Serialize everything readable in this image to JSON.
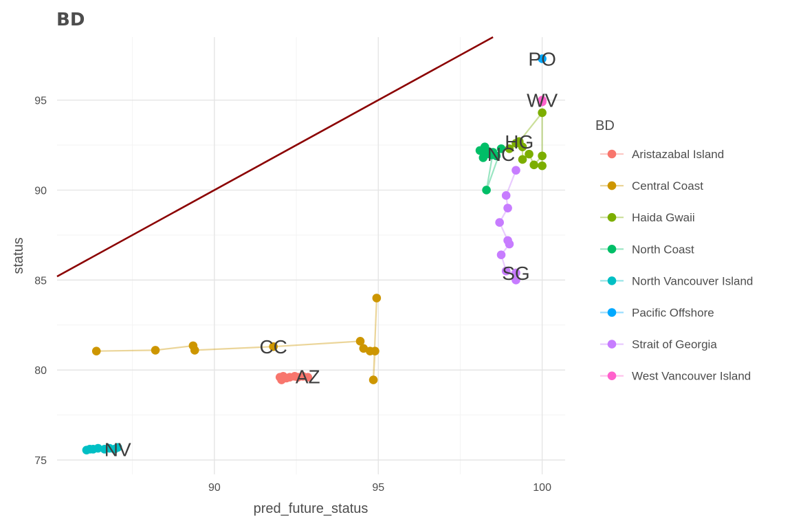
{
  "chart_data": {
    "type": "scatter",
    "title": "BD",
    "xlabel": "pred_future_status",
    "ylabel": "status",
    "xlim": [
      85.2,
      100.7
    ],
    "ylim": [
      74.2,
      98.5
    ],
    "x_ticks": [
      90,
      95,
      100
    ],
    "y_ticks": [
      75,
      80,
      85,
      90,
      95
    ],
    "grid": true,
    "legend_title": "BD",
    "legend_position": "right",
    "reference_line": {
      "type": "identity",
      "color": "#8b0000"
    },
    "series": [
      {
        "name": "Aristazabal Island",
        "color": "#F8766D",
        "label": "AZ",
        "points": [
          [
            92.0,
            79.6
          ],
          [
            92.05,
            79.45
          ],
          [
            92.2,
            79.55
          ],
          [
            92.3,
            79.6
          ],
          [
            92.45,
            79.65
          ],
          [
            92.55,
            79.6
          ],
          [
            92.7,
            79.65
          ],
          [
            92.85,
            79.6
          ],
          [
            92.1,
            79.65
          ]
        ]
      },
      {
        "name": "Central Coast",
        "color": "#CD9600",
        "label": "CC",
        "points": [
          [
            86.4,
            81.05
          ],
          [
            88.2,
            81.1
          ],
          [
            89.35,
            81.35
          ],
          [
            89.4,
            81.1
          ],
          [
            91.8,
            81.3
          ],
          [
            94.45,
            81.6
          ],
          [
            94.55,
            81.2
          ],
          [
            94.75,
            81.05
          ],
          [
            94.9,
            81.05
          ],
          [
            94.85,
            79.45
          ],
          [
            94.95,
            84.0
          ]
        ]
      },
      {
        "name": "Haida Gwaii",
        "color": "#7CAE00",
        "label": "HG",
        "points": [
          [
            99.0,
            92.3
          ],
          [
            99.2,
            92.6
          ],
          [
            99.4,
            92.4
          ],
          [
            99.4,
            91.7
          ],
          [
            99.6,
            92.0
          ],
          [
            99.75,
            91.4
          ],
          [
            100.0,
            91.9
          ],
          [
            100.0,
            91.35
          ],
          [
            100.0,
            94.3
          ],
          [
            99.3,
            92.7
          ]
        ]
      },
      {
        "name": "North Coast",
        "color": "#00BE67",
        "label": "NC",
        "points": [
          [
            98.1,
            92.2
          ],
          [
            98.2,
            91.8
          ],
          [
            98.25,
            92.4
          ],
          [
            98.3,
            92.0
          ],
          [
            98.35,
            92.15
          ],
          [
            98.45,
            91.95
          ],
          [
            98.6,
            91.9
          ],
          [
            98.75,
            92.3
          ],
          [
            98.3,
            90.0
          ],
          [
            98.5,
            92.1
          ]
        ]
      },
      {
        "name": "North Vancouver Island",
        "color": "#00BFC4",
        "label": "NV",
        "points": [
          [
            86.1,
            75.55
          ],
          [
            86.2,
            75.6
          ],
          [
            86.3,
            75.6
          ],
          [
            86.45,
            75.65
          ],
          [
            86.65,
            75.6
          ],
          [
            86.8,
            75.65
          ],
          [
            86.95,
            75.6
          ],
          [
            87.05,
            75.7
          ]
        ]
      },
      {
        "name": "Pacific Offshore",
        "color": "#00A9FF",
        "label": "PO",
        "points": [
          [
            100.0,
            97.3
          ]
        ]
      },
      {
        "name": "Strait of Georgia",
        "color": "#C77CFF",
        "label": "SG",
        "points": [
          [
            99.2,
            91.1
          ],
          [
            98.9,
            89.7
          ],
          [
            98.95,
            89.0
          ],
          [
            98.7,
            88.2
          ],
          [
            98.95,
            87.2
          ],
          [
            99.0,
            87.0
          ],
          [
            98.75,
            86.4
          ],
          [
            98.9,
            85.5
          ],
          [
            99.2,
            85.4
          ],
          [
            99.2,
            85.0
          ]
        ]
      },
      {
        "name": "West Vancouver Island",
        "color": "#FF61CC",
        "label": "WV",
        "points": [
          [
            100.0,
            95.0
          ],
          [
            100.0,
            94.9
          ]
        ]
      }
    ],
    "annotations": [
      {
        "text": "AZ",
        "x": 92.85,
        "y": 79.65
      },
      {
        "text": "CC",
        "x": 91.8,
        "y": 81.3
      },
      {
        "text": "HG",
        "x": 99.3,
        "y": 92.7
      },
      {
        "text": "NC",
        "x": 98.75,
        "y": 92.0
      },
      {
        "text": "NV",
        "x": 87.05,
        "y": 75.6
      },
      {
        "text": "PO",
        "x": 100.0,
        "y": 97.3
      },
      {
        "text": "SG",
        "x": 99.2,
        "y": 85.4
      },
      {
        "text": "WV",
        "x": 100.0,
        "y": 95.0
      }
    ]
  }
}
